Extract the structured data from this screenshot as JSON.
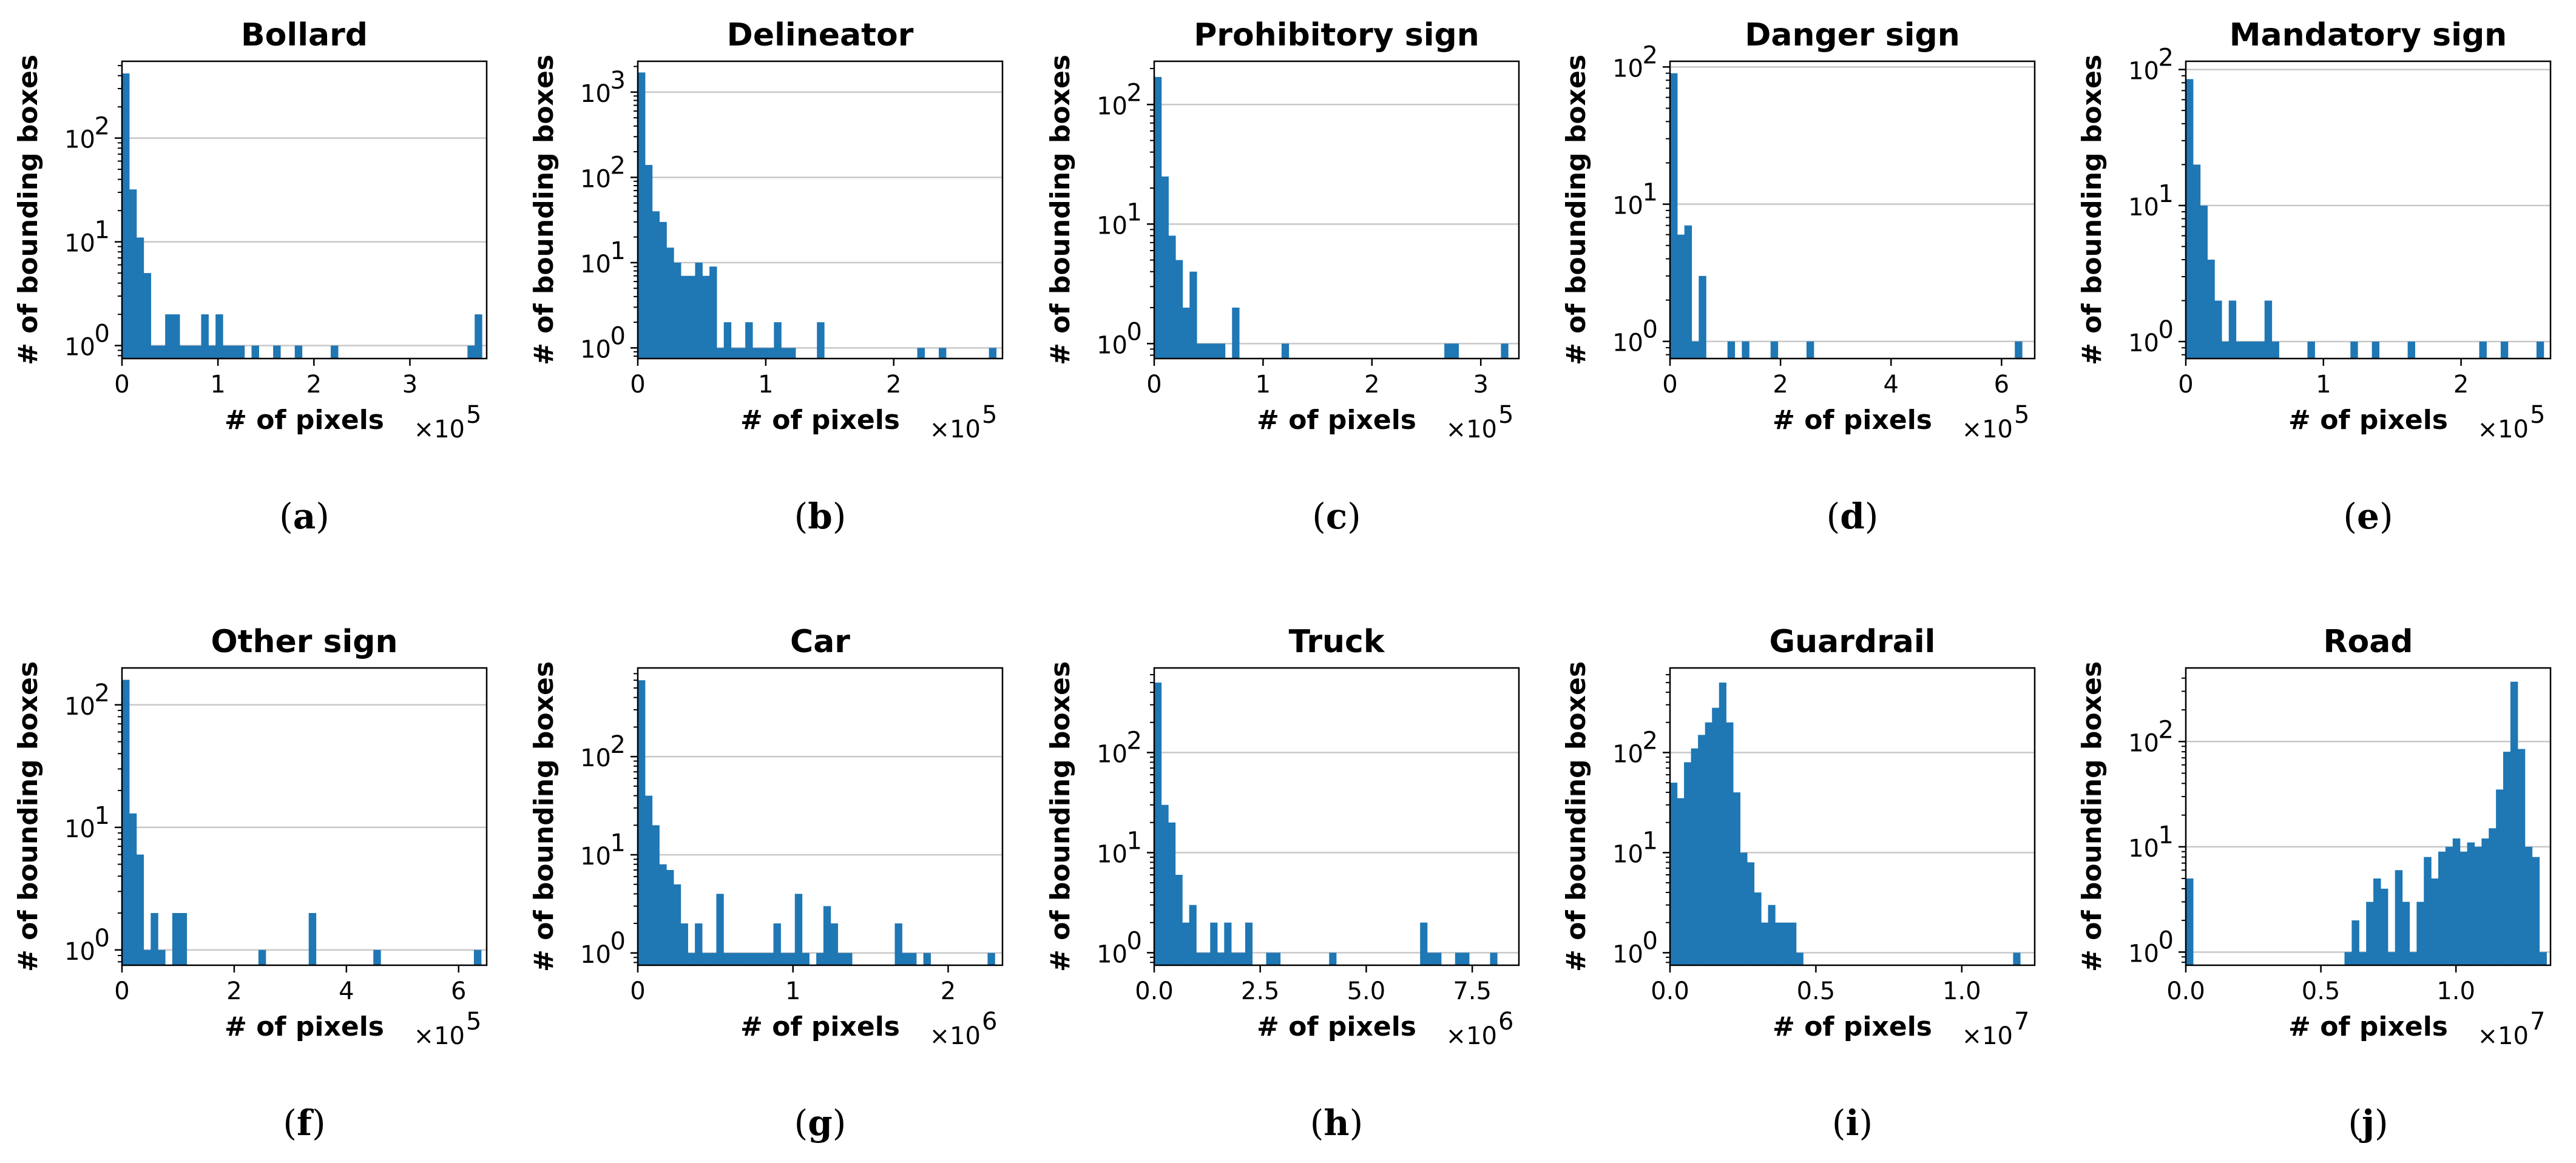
{
  "style": {
    "bar_color": "#1f77b4",
    "grid_color": "#c8c8c8",
    "axis_color": "#000000"
  },
  "chart_data": [
    {
      "type": "bar",
      "panel": "(a)",
      "panel_letter": "a",
      "title": "Bollard",
      "xlabel": "# of pixels",
      "ylabel": "# of bounding boxes",
      "x_multiplier": "×10",
      "x_exponent": "5",
      "xlim": [
        0,
        3.8
      ],
      "ylog": true,
      "ylim": [
        0.75,
        550
      ],
      "xticks": [
        0,
        1,
        2,
        3
      ],
      "xticklabels": [
        "0",
        "1",
        "2",
        "3"
      ],
      "yticks": [
        1,
        10,
        100
      ],
      "ytick_bases": [
        "10",
        "10",
        "10"
      ],
      "ytick_exps": [
        "0",
        "1",
        "2"
      ],
      "grid": "y",
      "bins": {
        "start": 0,
        "width": 0.075,
        "counts": [
          420,
          32,
          11,
          5,
          1,
          1,
          2,
          2,
          1,
          1,
          1,
          2,
          1,
          2,
          1,
          1,
          1,
          0,
          1,
          0,
          0,
          1,
          0,
          0,
          1,
          0,
          0,
          0,
          0,
          1,
          0,
          0,
          0,
          0,
          0,
          0,
          0,
          0,
          0,
          0,
          0,
          0,
          0,
          0,
          0,
          0,
          0,
          0,
          1,
          2
        ]
      }
    },
    {
      "type": "bar",
      "panel": "(b)",
      "panel_letter": "b",
      "title": "Delineator",
      "xlabel": "# of pixels",
      "ylabel": "# of bounding boxes",
      "x_multiplier": "×10",
      "x_exponent": "5",
      "xlim": [
        0,
        2.85
      ],
      "ylog": true,
      "ylim": [
        0.75,
        2300
      ],
      "xticks": [
        0,
        1,
        2
      ],
      "xticklabels": [
        "0",
        "1",
        "2"
      ],
      "yticks": [
        1,
        10,
        100,
        1000
      ],
      "ytick_bases": [
        "10",
        "10",
        "10",
        "10"
      ],
      "ytick_exps": [
        "0",
        "1",
        "2",
        "3"
      ],
      "grid": "y",
      "bins": {
        "start": 0,
        "width": 0.056,
        "counts": [
          1700,
          140,
          40,
          30,
          15,
          10,
          7,
          7,
          10,
          7,
          9,
          1,
          2,
          1,
          1,
          2,
          1,
          1,
          1,
          2,
          1,
          1,
          0,
          0,
          0,
          2,
          0,
          0,
          0,
          0,
          0,
          0,
          0,
          0,
          0,
          0,
          0,
          0,
          0,
          1,
          0,
          0,
          1,
          0,
          0,
          0,
          0,
          0,
          0,
          1
        ]
      }
    },
    {
      "type": "bar",
      "panel": "(c)",
      "panel_letter": "c",
      "title": "Prohibitory sign",
      "xlabel": "# of pixels",
      "ylabel": "# of bounding boxes",
      "x_multiplier": "×10",
      "x_exponent": "5",
      "xlim": [
        0,
        3.35
      ],
      "ylog": true,
      "ylim": [
        0.75,
        230
      ],
      "xticks": [
        0,
        1,
        2,
        3
      ],
      "xticklabels": [
        "0",
        "1",
        "2",
        "3"
      ],
      "yticks": [
        1,
        10,
        100
      ],
      "ytick_bases": [
        "10",
        "10",
        "10"
      ],
      "ytick_exps": [
        "0",
        "1",
        "2"
      ],
      "grid": "y",
      "bins": {
        "start": 0,
        "width": 0.065,
        "counts": [
          170,
          25,
          8,
          5,
          2,
          4,
          1,
          1,
          1,
          1,
          0,
          2,
          0,
          0,
          0,
          0,
          0,
          0,
          1,
          0,
          0,
          0,
          0,
          0,
          0,
          0,
          0,
          0,
          0,
          0,
          0,
          0,
          0,
          0,
          0,
          0,
          0,
          0,
          0,
          0,
          0,
          1,
          1,
          0,
          0,
          0,
          0,
          0,
          0,
          1
        ]
      }
    },
    {
      "type": "bar",
      "panel": "(d)",
      "panel_letter": "d",
      "title": "Danger sign",
      "xlabel": "# of pixels",
      "ylabel": "# of bounding boxes",
      "x_multiplier": "×10",
      "x_exponent": "5",
      "xlim": [
        0,
        6.6
      ],
      "ylog": true,
      "ylim": [
        0.75,
        110
      ],
      "xticks": [
        0,
        2,
        4,
        6
      ],
      "xticklabels": [
        "0",
        "2",
        "4",
        "6"
      ],
      "yticks": [
        1,
        10,
        100
      ],
      "ytick_bases": [
        "10",
        "10",
        "10"
      ],
      "ytick_exps": [
        "0",
        "1",
        "2"
      ],
      "grid": "y",
      "bins": {
        "start": 0,
        "width": 0.13,
        "counts": [
          90,
          6,
          7,
          1,
          3,
          0,
          0,
          0,
          1,
          0,
          1,
          0,
          0,
          0,
          1,
          0,
          0,
          0,
          0,
          1,
          0,
          0,
          0,
          0,
          0,
          0,
          0,
          0,
          0,
          0,
          0,
          0,
          0,
          0,
          0,
          0,
          0,
          0,
          0,
          0,
          0,
          0,
          0,
          0,
          0,
          0,
          0,
          0,
          1,
          0
        ]
      }
    },
    {
      "type": "bar",
      "panel": "(e)",
      "panel_letter": "e",
      "title": "Mandatory sign",
      "xlabel": "# of pixels",
      "ylabel": "# of bounding boxes",
      "x_multiplier": "×10",
      "x_exponent": "5",
      "xlim": [
        0,
        2.65
      ],
      "ylog": true,
      "ylim": [
        0.75,
        115
      ],
      "xticks": [
        0,
        1,
        2
      ],
      "xticklabels": [
        "0",
        "1",
        "2"
      ],
      "yticks": [
        1,
        10,
        100
      ],
      "ytick_bases": [
        "10",
        "10",
        "10"
      ],
      "ytick_exps": [
        "0",
        "1",
        "2"
      ],
      "grid": "y",
      "bins": {
        "start": 0,
        "width": 0.052,
        "counts": [
          85,
          20,
          10,
          4,
          2,
          1,
          2,
          1,
          1,
          1,
          1,
          2,
          1,
          0,
          0,
          0,
          0,
          1,
          0,
          0,
          0,
          0,
          0,
          1,
          0,
          0,
          1,
          0,
          0,
          0,
          0,
          1,
          0,
          0,
          0,
          0,
          0,
          0,
          0,
          0,
          0,
          1,
          0,
          0,
          1,
          0,
          0,
          0,
          0,
          1
        ]
      }
    },
    {
      "type": "bar",
      "panel": "(f)",
      "panel_letter": "f",
      "title": "Other sign",
      "xlabel": "# of pixels",
      "ylabel": "# of bounding boxes",
      "x_multiplier": "×10",
      "x_exponent": "5",
      "xlim": [
        0,
        6.5
      ],
      "ylog": true,
      "ylim": [
        0.75,
        200
      ],
      "xticks": [
        0,
        2,
        4,
        6
      ],
      "xticklabels": [
        "0",
        "2",
        "4",
        "6"
      ],
      "yticks": [
        1,
        10,
        100
      ],
      "ytick_bases": [
        "10",
        "10",
        "10"
      ],
      "ytick_exps": [
        "0",
        "1",
        "2"
      ],
      "grid": "y",
      "bins": {
        "start": 0,
        "width": 0.128,
        "counts": [
          160,
          13,
          6,
          1,
          2,
          1,
          0,
          2,
          2,
          0,
          0,
          0,
          0,
          0,
          0,
          0,
          0,
          0,
          0,
          1,
          0,
          0,
          0,
          0,
          0,
          0,
          2,
          0,
          0,
          0,
          0,
          0,
          0,
          0,
          0,
          1,
          0,
          0,
          0,
          0,
          0,
          0,
          0,
          0,
          0,
          0,
          0,
          0,
          0,
          1
        ]
      }
    },
    {
      "type": "bar",
      "panel": "(g)",
      "panel_letter": "g",
      "title": "Car",
      "xlabel": "# of pixels",
      "ylabel": "# of bounding boxes",
      "x_multiplier": "×10",
      "x_exponent": "6",
      "xlim": [
        0,
        2.35
      ],
      "ylog": true,
      "ylim": [
        0.75,
        800
      ],
      "xticks": [
        0,
        1,
        2
      ],
      "xticklabels": [
        "0",
        "1",
        "2"
      ],
      "yticks": [
        1,
        10,
        100
      ],
      "ytick_bases": [
        "10",
        "10",
        "10"
      ],
      "ytick_exps": [
        "0",
        "1",
        "2"
      ],
      "grid": "y",
      "bins": {
        "start": 0,
        "width": 0.046,
        "counts": [
          600,
          40,
          20,
          8,
          7,
          5,
          2,
          1,
          2,
          1,
          1,
          4,
          1,
          1,
          1,
          1,
          1,
          1,
          1,
          2,
          1,
          1,
          4,
          1,
          0,
          1,
          3,
          2,
          1,
          1,
          0,
          0,
          0,
          0,
          0,
          0,
          2,
          1,
          1,
          0,
          1,
          0,
          0,
          0,
          0,
          0,
          0,
          0,
          0,
          1
        ]
      }
    },
    {
      "type": "bar",
      "panel": "(h)",
      "panel_letter": "h",
      "title": "Truck",
      "xlabel": "# of pixels",
      "ylabel": "# of bounding boxes",
      "x_multiplier": "×10",
      "x_exponent": "6",
      "xlim": [
        0,
        8.6
      ],
      "ylog": true,
      "ylim": [
        0.75,
        700
      ],
      "xticks": [
        0,
        2.5,
        5,
        7.5
      ],
      "xticklabels": [
        "0.0",
        "2.5",
        "5.0",
        "7.5"
      ],
      "yticks": [
        1,
        10,
        100
      ],
      "ytick_bases": [
        "10",
        "10",
        "10"
      ],
      "ytick_exps": [
        "0",
        "1",
        "2"
      ],
      "grid": "y",
      "bins": {
        "start": 0,
        "width": 0.165,
        "counts": [
          500,
          30,
          20,
          6,
          2,
          3,
          1,
          1,
          2,
          1,
          2,
          1,
          1,
          2,
          0,
          0,
          1,
          1,
          0,
          0,
          0,
          0,
          0,
          0,
          0,
          1,
          0,
          0,
          0,
          0,
          0,
          0,
          0,
          0,
          0,
          0,
          0,
          0,
          2,
          1,
          1,
          0,
          0,
          1,
          1,
          0,
          0,
          0,
          1,
          0
        ]
      }
    },
    {
      "type": "bar",
      "panel": "(i)",
      "panel_letter": "i",
      "title": "Guardrail",
      "xlabel": "# of pixels",
      "ylabel": "# of bounding boxes",
      "x_multiplier": "×10",
      "x_exponent": "7",
      "xlim": [
        0,
        1.25
      ],
      "ylog": true,
      "ylim": [
        0.75,
        700
      ],
      "xticks": [
        0,
        0.5,
        1
      ],
      "xticklabels": [
        "0.0",
        "0.5",
        "1.0"
      ],
      "yticks": [
        1,
        10,
        100
      ],
      "ytick_bases": [
        "10",
        "10",
        "10"
      ],
      "ytick_exps": [
        "0",
        "1",
        "2"
      ],
      "grid": "y",
      "bins": {
        "start": 0,
        "width": 0.024,
        "counts": [
          50,
          35,
          80,
          110,
          150,
          200,
          280,
          500,
          200,
          40,
          10,
          8,
          4,
          2,
          3,
          2,
          2,
          2,
          1,
          0,
          0,
          0,
          0,
          0,
          0,
          0,
          0,
          0,
          0,
          0,
          0,
          0,
          0,
          0,
          0,
          0,
          0,
          0,
          0,
          0,
          0,
          0,
          0,
          0,
          0,
          0,
          0,
          0,
          0,
          1
        ]
      }
    },
    {
      "type": "bar",
      "panel": "(j)",
      "panel_letter": "j",
      "title": "Road",
      "xlabel": "# of pixels",
      "ylabel": "# of bounding boxes",
      "x_multiplier": "×10",
      "x_exponent": "7",
      "xlim": [
        0,
        1.35
      ],
      "ylog": true,
      "ylim": [
        0.75,
        500
      ],
      "xticks": [
        0,
        0.5,
        1
      ],
      "xticklabels": [
        "0.0",
        "0.5",
        "1.0"
      ],
      "yticks": [
        1,
        10,
        100
      ],
      "ytick_bases": [
        "10",
        "10",
        "10"
      ],
      "ytick_exps": [
        "0",
        "1",
        "2"
      ],
      "grid": "y",
      "bins": {
        "start": 0,
        "width": 0.0267,
        "counts": [
          5,
          0,
          0,
          0,
          0,
          0,
          0,
          0,
          0,
          0,
          0,
          0,
          0,
          0,
          0,
          0,
          0,
          0,
          0,
          0,
          0,
          0,
          1,
          2,
          1,
          3,
          5,
          4,
          1,
          6,
          3,
          1,
          3,
          8,
          5,
          9,
          10,
          12,
          9,
          11,
          10,
          12,
          15,
          35,
          80,
          370,
          85,
          10,
          8,
          1
        ]
      }
    }
  ]
}
